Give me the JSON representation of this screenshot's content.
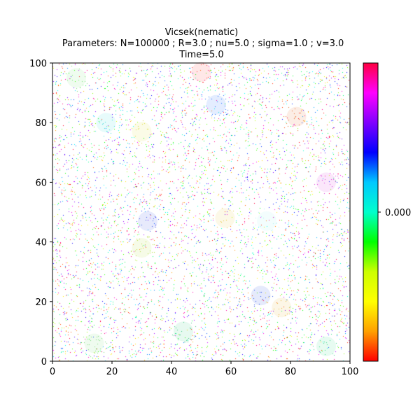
{
  "chart_data": {
    "type": "scatter",
    "title": "Vicsek(nematic)",
    "subtitle": " Parameters: N=100000 ; R=3.0 ; nu=5.0 ; sigma=1.0 ; v=3.0",
    "time_label": "Time=5.0",
    "xlabel": "",
    "ylabel": "",
    "xlim": [
      0,
      100
    ],
    "ylim": [
      0,
      100
    ],
    "x_ticks": [
      0,
      20,
      40,
      60,
      80,
      100
    ],
    "y_ticks": [
      0,
      20,
      40,
      60,
      80,
      100
    ],
    "x_tick_labels": [
      "0",
      "20",
      "40",
      "60",
      "80",
      "100"
    ],
    "y_tick_labels": [
      "0",
      "20",
      "40",
      "60",
      "80",
      "100"
    ],
    "grid": false,
    "colormap": "hsv",
    "colorbar": {
      "tick_value": 0.0,
      "tick_label": "0.000",
      "colors_top_to_bottom": [
        "#ff0040",
        "#ff00ff",
        "#8000ff",
        "#0000ff",
        "#00c8ff",
        "#00ffcc",
        "#00ff00",
        "#ccff00",
        "#ffff00",
        "#ffa000",
        "#ff0000"
      ]
    },
    "particles": {
      "count": 100000,
      "color_encoding": "heading angle (hsv)",
      "rendered_note": "dense random field of particles colored by orientation"
    },
    "clusters": [
      {
        "x": 55,
        "y": 86,
        "color": "#1e6cff"
      },
      {
        "x": 8,
        "y": 95,
        "color": "#78e678"
      },
      {
        "x": 30,
        "y": 77,
        "color": "#dcdc3c"
      },
      {
        "x": 50,
        "y": 97,
        "color": "#ff3c3c"
      },
      {
        "x": 82,
        "y": 82,
        "color": "#e66e28"
      },
      {
        "x": 18,
        "y": 80,
        "color": "#3cdcdc"
      },
      {
        "x": 58,
        "y": 48,
        "color": "#e6c83c"
      },
      {
        "x": 32,
        "y": 47,
        "color": "#3c50e6"
      },
      {
        "x": 72,
        "y": 47,
        "color": "#a0f0f0"
      },
      {
        "x": 70,
        "y": 22,
        "color": "#2850e6"
      },
      {
        "x": 77,
        "y": 18,
        "color": "#e6b432"
      },
      {
        "x": 44,
        "y": 10,
        "color": "#3ccc82"
      },
      {
        "x": 92,
        "y": 5,
        "color": "#3cdc8c"
      },
      {
        "x": 14,
        "y": 6,
        "color": "#78dc78"
      },
      {
        "x": 92,
        "y": 60,
        "color": "#dc3cdc"
      },
      {
        "x": 30,
        "y": 38,
        "color": "#b4dc3c"
      }
    ]
  }
}
